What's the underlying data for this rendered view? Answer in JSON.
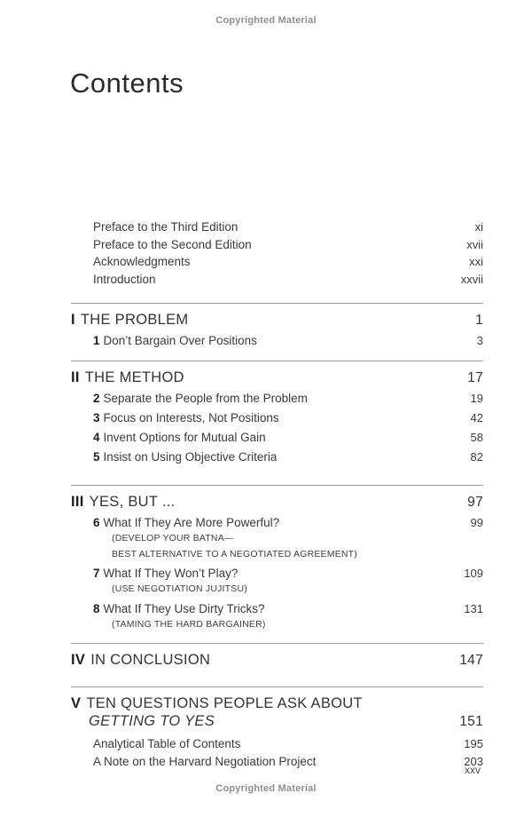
{
  "page": {
    "copyright_top": "Copyrighted Material",
    "copyright_bottom": "Copyrighted Material",
    "title": "Contents",
    "folio": "xxv"
  },
  "front_matter": [
    {
      "label": "Preface to the Third Edition",
      "page": "xi"
    },
    {
      "label": "Preface to the Second Edition",
      "page": "xvii"
    },
    {
      "label": "Acknowledgments",
      "page": "xxi"
    },
    {
      "label": "Introduction",
      "page": "xxvii"
    }
  ],
  "parts": [
    {
      "numeral": "I",
      "title": "THE PROBLEM",
      "page": "1",
      "chapters": [
        {
          "number": "1",
          "title": "Don’t Bargain Over Positions",
          "page": "3"
        }
      ]
    },
    {
      "numeral": "II",
      "title": "THE METHOD",
      "page": "17",
      "chapters": [
        {
          "number": "2",
          "title": "Separate the People from the Problem",
          "page": "19"
        },
        {
          "number": "3",
          "title": "Focus on Interests, Not Positions",
          "page": "42"
        },
        {
          "number": "4",
          "title": "Invent Options for Mutual Gain",
          "page": "58"
        },
        {
          "number": "5",
          "title": "Insist on Using Objective Criteria",
          "page": "82"
        }
      ]
    },
    {
      "numeral": "III",
      "title": "YES, BUT ...",
      "page": "97",
      "chapters": [
        {
          "number": "6",
          "title": "What If They Are More Powerful?",
          "page": "99",
          "subtitle_lines": [
            "(DEVELOP YOUR BATNA—",
            "BEST ALTERNATIVE TO A NEGOTIATED AGREEMENT)"
          ]
        },
        {
          "number": "7",
          "title": "What If They Won’t Play?",
          "page": "109",
          "subtitle_lines": [
            "(USE NEGOTIATION JUJITSU)"
          ]
        },
        {
          "number": "8",
          "title": "What If They Use Dirty Tricks?",
          "page": "131",
          "subtitle_lines": [
            "(TAMING THE HARD BARGAINER)"
          ]
        }
      ]
    },
    {
      "numeral": "IV",
      "title": "IN CONCLUSION",
      "page": "147",
      "chapters": []
    },
    {
      "numeral": "V",
      "title": "TEN QUESTIONS PEOPLE ASK ABOUT",
      "title_line2": "GETTING TO YES",
      "page": "151",
      "chapters": [],
      "extras": [
        {
          "label": "Analytical Table of Contents",
          "page": "195"
        },
        {
          "label": "A Note on the Harvard Negotiation Project",
          "page": "203"
        }
      ]
    }
  ]
}
